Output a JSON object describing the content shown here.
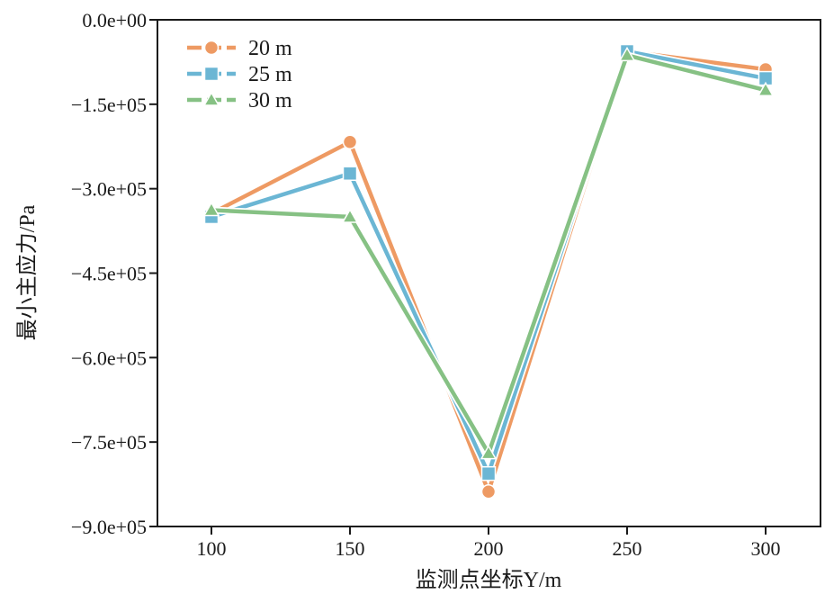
{
  "chart_data": {
    "type": "line",
    "title": "",
    "xlabel": "监测点坐标Y/m",
    "ylabel": "最小主应力/Pa",
    "x": [
      100,
      150,
      200,
      250,
      300
    ],
    "x_ticks": [
      "100",
      "150",
      "200",
      "250",
      "300"
    ],
    "ylim": [
      -900000,
      0
    ],
    "y_ticks": [
      {
        "value": 0,
        "label": "0.0e+00"
      },
      {
        "value": -150000,
        "label": "−1.5e+05"
      },
      {
        "value": -300000,
        "label": "−3.0e+05"
      },
      {
        "value": -450000,
        "label": "−4.5e+05"
      },
      {
        "value": -600000,
        "label": "−6.0e+05"
      },
      {
        "value": -750000,
        "label": "−7.5e+05"
      },
      {
        "value": -900000,
        "label": "−9.0e+05"
      }
    ],
    "grid": false,
    "legend_position": "top-left",
    "series": [
      {
        "name": "20 m",
        "marker": "circle",
        "color": "#EE9A63",
        "values": [
          -344000,
          -217000,
          -838000,
          -56000,
          -88000
        ]
      },
      {
        "name": "25 m",
        "marker": "square",
        "color": "#6BB6D4",
        "values": [
          -350000,
          -273000,
          -806000,
          -56000,
          -104000
        ]
      },
      {
        "name": "30 m",
        "marker": "triangle",
        "color": "#86C184",
        "values": [
          -338000,
          -350000,
          -770000,
          -63000,
          -125000
        ]
      }
    ]
  }
}
